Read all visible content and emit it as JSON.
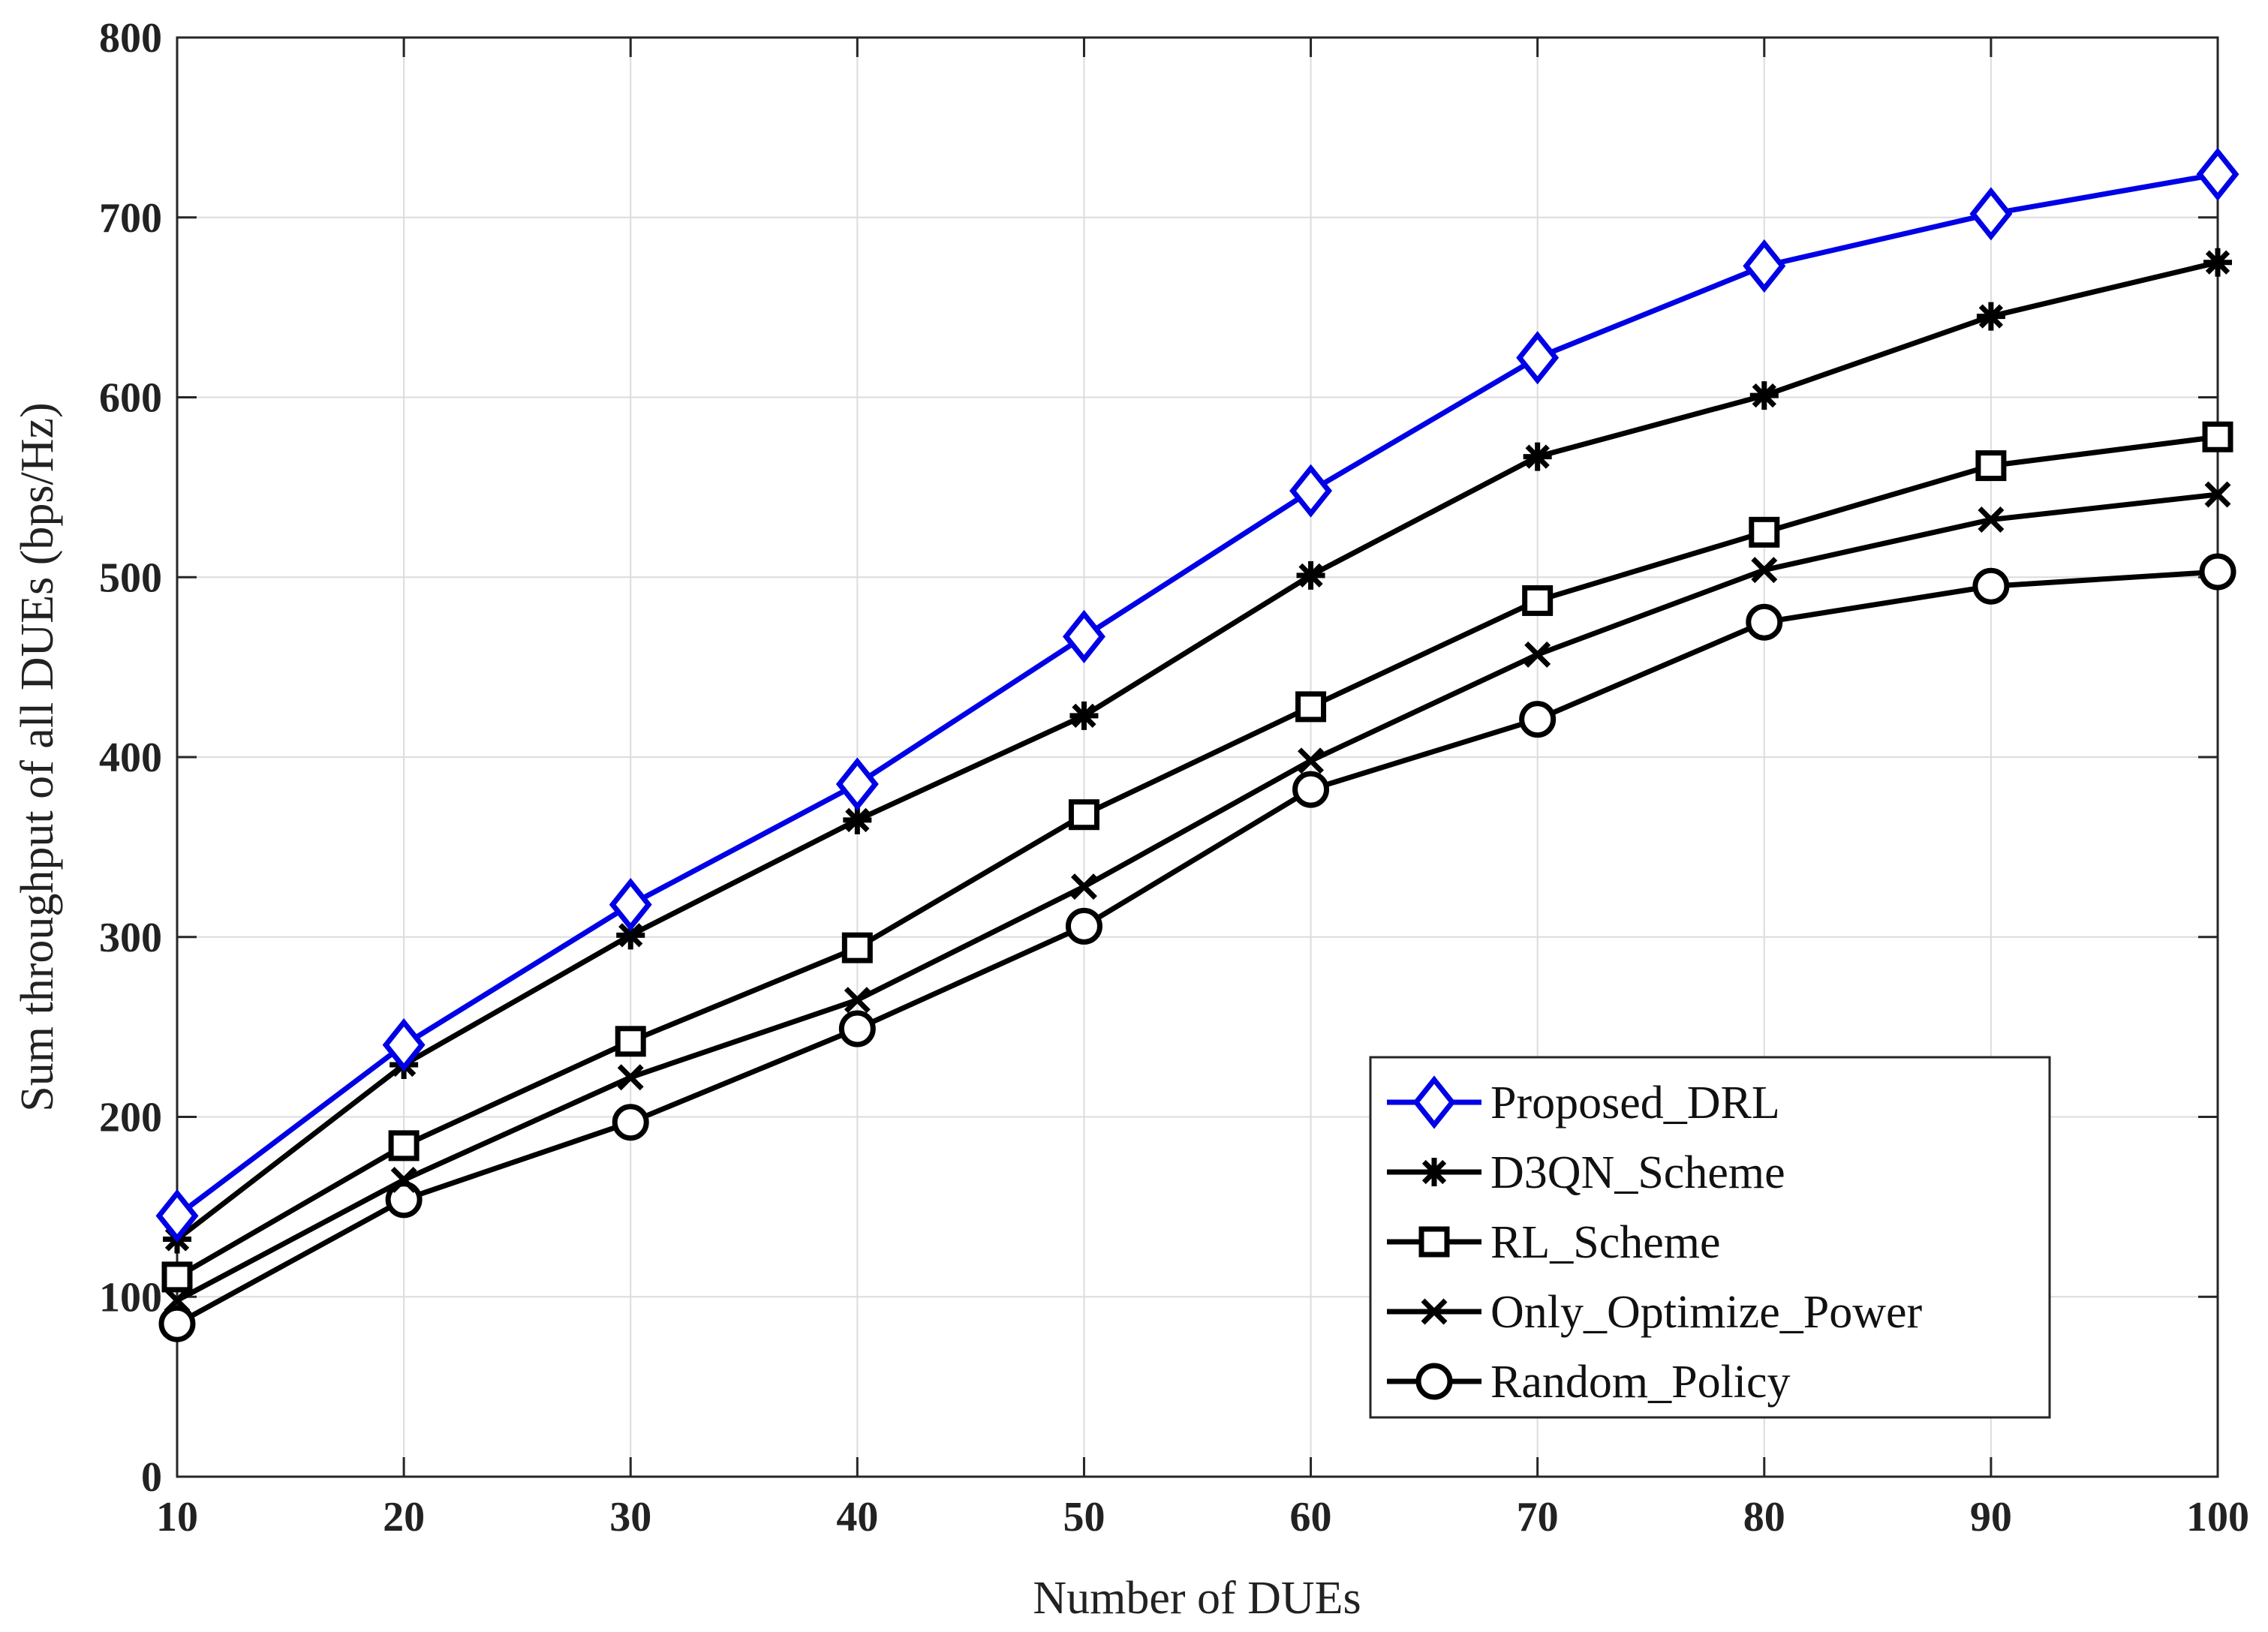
{
  "chart_data": {
    "type": "line",
    "title": "",
    "xlabel": "Number of DUEs",
    "ylabel": "Sum throughput of all DUEs (bps/Hz)",
    "x": [
      10,
      20,
      30,
      40,
      50,
      60,
      70,
      80,
      90,
      100
    ],
    "xlim": [
      10,
      100
    ],
    "ylim": [
      0,
      800
    ],
    "xticks": [
      10,
      20,
      30,
      40,
      50,
      60,
      70,
      80,
      90,
      100
    ],
    "yticks": [
      0,
      100,
      200,
      300,
      400,
      500,
      600,
      700,
      800
    ],
    "grid": true,
    "legend_position": "bottom-right",
    "series": [
      {
        "name": "Proposed_DRL",
        "color": "#0000e6",
        "marker": "diamond",
        "values": [
          145,
          240,
          318,
          385,
          467,
          548,
          622,
          673,
          702,
          724
        ]
      },
      {
        "name": "D3QN_Scheme",
        "color": "#000000",
        "marker": "asterisk",
        "values": [
          132,
          229,
          301,
          365,
          423,
          501,
          567,
          601,
          645,
          675
        ]
      },
      {
        "name": "RL_Scheme",
        "color": "#000000",
        "marker": "square",
        "values": [
          111,
          184,
          242,
          294,
          368,
          428,
          487,
          525,
          562,
          578
        ]
      },
      {
        "name": "Only_Optimize_Power",
        "color": "#000000",
        "marker": "x",
        "values": [
          98,
          165,
          222,
          265,
          328,
          398,
          457,
          504,
          532,
          546
        ]
      },
      {
        "name": "Random_Policy",
        "color": "#000000",
        "marker": "circle",
        "values": [
          85,
          154,
          197,
          249,
          306,
          382,
          421,
          475,
          495,
          503
        ]
      }
    ]
  }
}
